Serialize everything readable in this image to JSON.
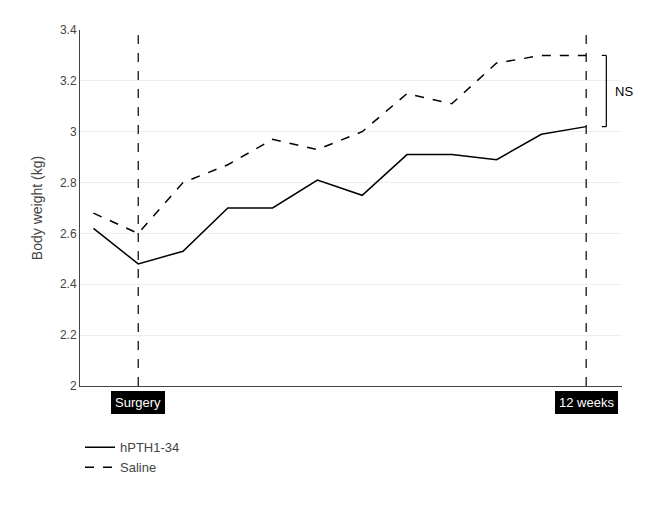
{
  "chart_data": {
    "type": "line",
    "x": [
      0,
      1,
      2,
      3,
      4,
      5,
      6,
      7,
      8,
      9,
      10,
      11
    ],
    "series": [
      {
        "name": "hPTH1-34",
        "color": "#000000",
        "line_style": "solid",
        "values": [
          2.62,
          2.48,
          2.53,
          2.7,
          2.7,
          2.81,
          2.75,
          2.91,
          2.91,
          2.89,
          2.99,
          3.02
        ]
      },
      {
        "name": "Saline",
        "color": "#000000",
        "line_style": "dashed",
        "values": [
          2.68,
          2.6,
          2.8,
          2.87,
          2.97,
          2.93,
          3.0,
          3.15,
          3.11,
          3.27,
          3.3,
          3.3
        ]
      }
    ],
    "y_label": "Body weight (kg)",
    "xlim": [
      -0.3,
      11.8
    ],
    "ylim": [
      2.0,
      3.4
    ],
    "yticks": [
      2.0,
      2.2,
      2.4,
      2.6,
      2.8,
      3.0,
      3.2,
      3.4
    ],
    "tick_labels": "y",
    "grid": true,
    "legend": "lower left",
    "annotations": [
      {
        "text": "Surgery",
        "x": 1
      },
      {
        "text": "12 weeks",
        "x": 11
      },
      {
        "text": "NS"
      }
    ]
  }
}
